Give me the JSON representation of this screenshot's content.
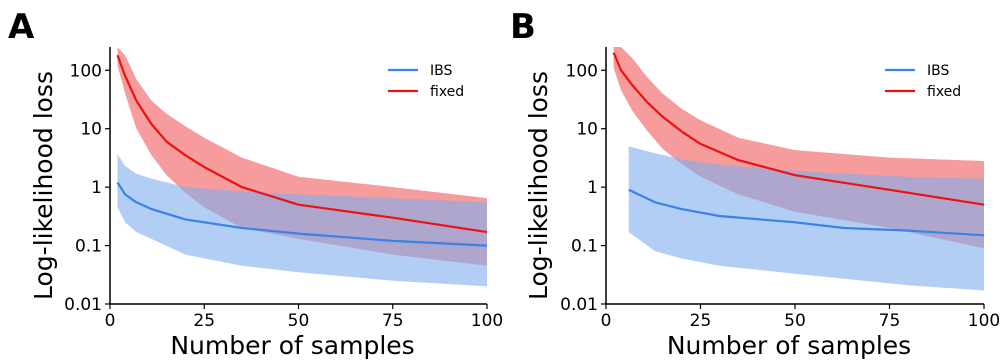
{
  "colors": {
    "IBS": "#3b82e6",
    "fixed": "#ee1111",
    "IBS_band": "#7eaeef",
    "fixed_band": "#f25a5a"
  },
  "chart_data": [
    {
      "panel": "A",
      "type": "line",
      "ylabel": "Log-likelihood loss",
      "xlabel": "Number of samples",
      "xlim": [
        0,
        100
      ],
      "ylim": [
        0.01,
        250
      ],
      "yscale": "log",
      "xticks": [
        "0",
        "25",
        "50",
        "75",
        "100"
      ],
      "yticks": [
        "0.01",
        "0.1",
        "1",
        "10",
        "100"
      ],
      "legend_position": "top-right",
      "series": [
        {
          "name": "IBS",
          "x": [
            2,
            4,
            7,
            11,
            20,
            35,
            50,
            75,
            100
          ],
          "y": [
            1.2,
            0.75,
            0.55,
            0.42,
            0.28,
            0.2,
            0.16,
            0.12,
            0.1
          ],
          "lower": [
            0.45,
            0.25,
            0.17,
            0.13,
            0.07,
            0.045,
            0.035,
            0.025,
            0.02
          ],
          "upper": [
            3.7,
            2.3,
            1.7,
            1.4,
            1.0,
            0.85,
            0.75,
            0.65,
            0.55
          ]
        },
        {
          "name": "fixed",
          "x": [
            2,
            4,
            7,
            11,
            15,
            20,
            25,
            35,
            50,
            75,
            100
          ],
          "y": [
            180,
            80,
            30,
            12,
            6,
            3.5,
            2.2,
            1.0,
            0.5,
            0.3,
            0.17
          ],
          "lower": [
            120,
            40,
            10,
            3.5,
            1.6,
            0.8,
            0.45,
            0.2,
            0.13,
            0.07,
            0.045
          ],
          "upper": [
            250,
            180,
            70,
            30,
            18,
            11,
            7,
            3.2,
            1.5,
            1.0,
            0.65
          ]
        }
      ]
    },
    {
      "panel": "B",
      "type": "line",
      "ylabel": "Log-likelihood loss",
      "xlabel": "Number of samples",
      "xlim": [
        0,
        100
      ],
      "ylim": [
        0.01,
        250
      ],
      "yscale": "log",
      "xticks": [
        "0",
        "25",
        "50",
        "75",
        "100"
      ],
      "yticks": [
        "0.01",
        "0.1",
        "1",
        "10",
        "100"
      ],
      "legend_position": "top-right",
      "series": [
        {
          "name": "IBS",
          "x": [
            6,
            13,
            20,
            30,
            50,
            63,
            80,
            100
          ],
          "y": [
            0.9,
            0.55,
            0.42,
            0.32,
            0.25,
            0.2,
            0.18,
            0.15
          ],
          "lower": [
            0.17,
            0.08,
            0.06,
            0.045,
            0.033,
            0.027,
            0.021,
            0.017
          ],
          "upper": [
            5.0,
            3.8,
            3.0,
            2.4,
            1.9,
            1.7,
            1.5,
            1.4
          ]
        },
        {
          "name": "fixed",
          "x": [
            2,
            4,
            7,
            11,
            15,
            20,
            25,
            35,
            50,
            75,
            100
          ],
          "y": [
            200,
            100,
            55,
            28,
            16,
            9,
            5.5,
            2.9,
            1.6,
            0.9,
            0.5
          ],
          "lower": [
            110,
            45,
            20,
            9,
            4.5,
            2.5,
            1.5,
            0.75,
            0.38,
            0.2,
            0.09
          ],
          "upper": [
            250,
            250,
            160,
            75,
            40,
            22,
            14,
            7,
            4.3,
            3.2,
            2.8
          ]
        }
      ]
    }
  ]
}
